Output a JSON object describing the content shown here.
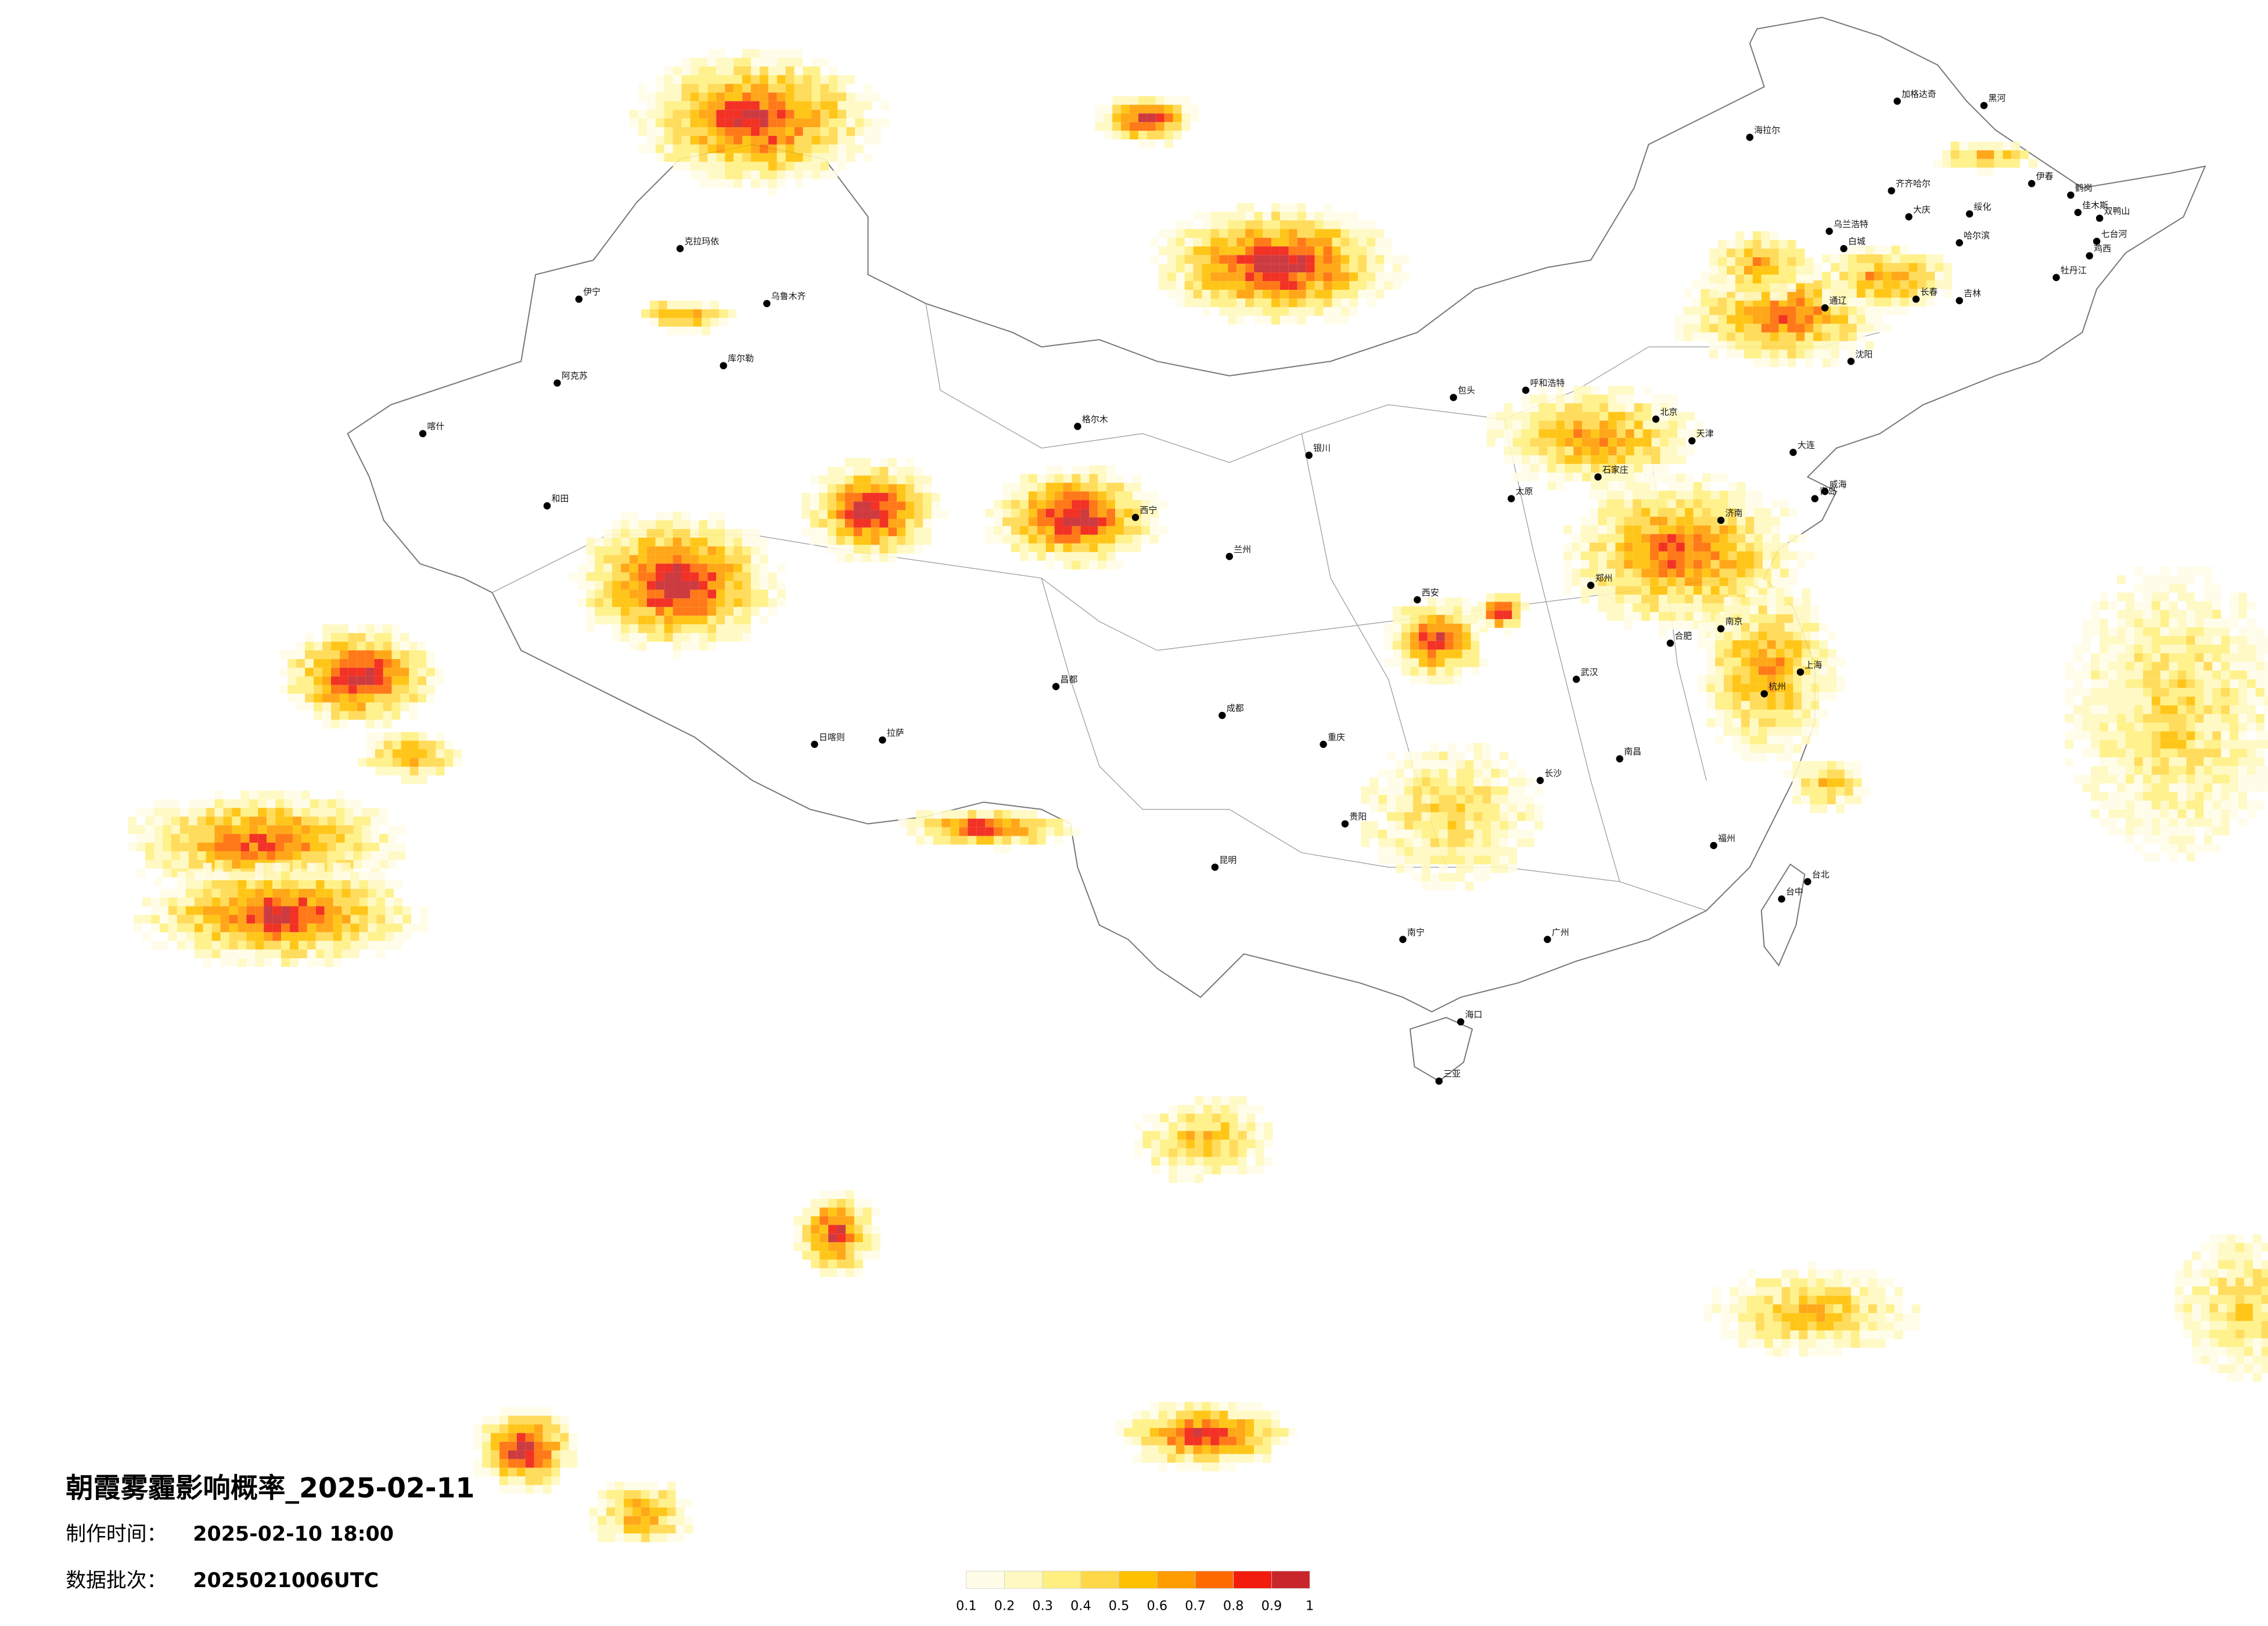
{
  "title": "朝霞雾霾影响概率_2025-02-11",
  "info": [
    {
      "label": "制作时间：",
      "value": "2025-02-10 18:00"
    },
    {
      "label": "数据批次：",
      "value": "2025021006UTC"
    }
  ],
  "legend": {
    "colors": [
      "#fffde8",
      "#fff8c0",
      "#ffef80",
      "#ffd84a",
      "#ffc000",
      "#ff9d00",
      "#ff6a00",
      "#f21c0e",
      "#c8262b"
    ],
    "ticks": [
      0.1,
      0.2,
      0.3,
      0.4,
      0.5,
      0.6,
      0.7,
      0.8,
      0.9,
      1
    ]
  },
  "cities": [
    "伊春",
    "鹤岗",
    "佳木斯",
    "双鸭山",
    "七台河",
    "鸡西",
    "牡丹江",
    "齐齐哈尔",
    "大庆",
    "绥化",
    "哈尔滨",
    "长春",
    "吉林",
    "白城",
    "乌兰浩特",
    "加格达奇",
    "黑河",
    "海拉尔",
    "通辽",
    "沈阳",
    "大连",
    "北京",
    "天津",
    "石家庄",
    "济南",
    "青岛",
    "威海",
    "郑州",
    "西安",
    "兰州",
    "西宁",
    "银川",
    "呼和浩特",
    "包头",
    "乌鲁木齐",
    "克拉玛依",
    "伊宁",
    "阿克苏",
    "喀什",
    "和田",
    "拉萨",
    "日喀则",
    "昌都",
    "格尔木",
    "成都",
    "重庆",
    "贵阳",
    "昆明",
    "南宁",
    "广州",
    "长沙",
    "武汉",
    "南昌",
    "福州",
    "杭州",
    "南京",
    "上海",
    "合肥",
    "台北",
    "台中",
    "海口",
    "三亚",
    "太原",
    "库尔勒"
  ]
}
